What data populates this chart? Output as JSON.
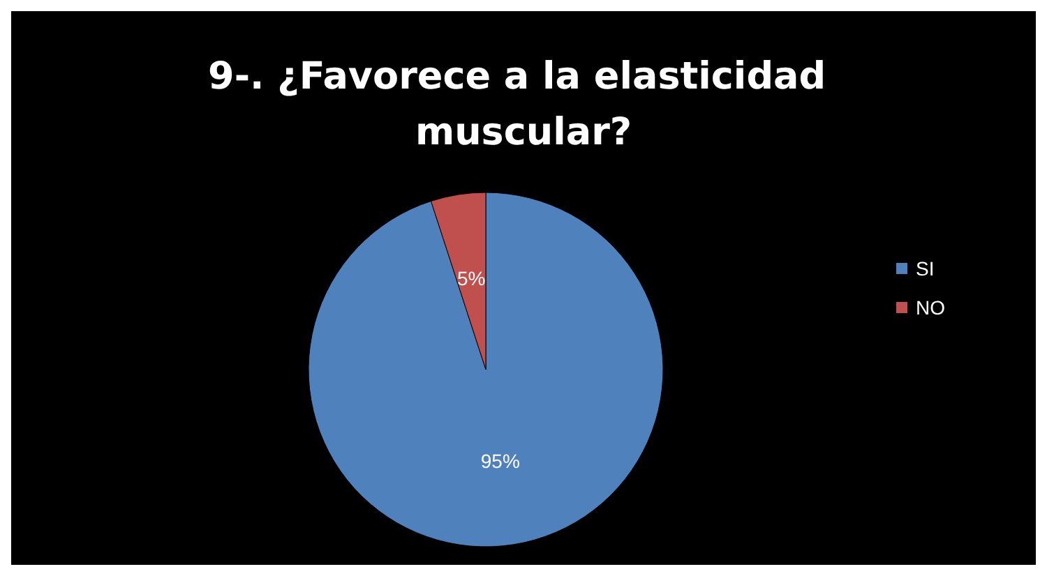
{
  "chart_data": {
    "type": "pie",
    "title": "9-. ¿Favorece a la elasticidad muscular?",
    "categories": [
      "SI",
      "NO"
    ],
    "values": [
      95,
      5
    ],
    "colors": [
      "#4f81bd",
      "#c0504d"
    ],
    "value_labels": [
      "95%",
      "5%"
    ],
    "legend": "right"
  }
}
